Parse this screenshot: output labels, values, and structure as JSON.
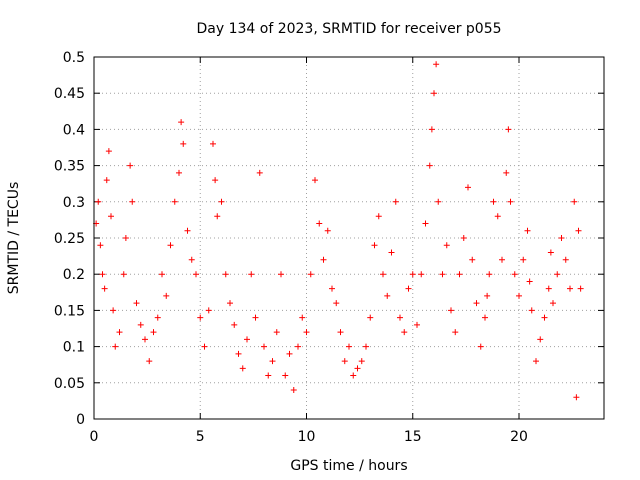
{
  "chart_data": {
    "type": "scatter",
    "title": "Day 134 of 2023, SRMTID for receiver p055",
    "xlabel": "GPS time / hours",
    "ylabel": "SRMTID / TECUs",
    "xlim": [
      0,
      24
    ],
    "ylim": [
      0,
      0.5
    ],
    "x_ticks": [
      0,
      5,
      10,
      15,
      20
    ],
    "x_tick_labels": [
      "0",
      "5",
      "10",
      "15",
      "20"
    ],
    "y_ticks": [
      0,
      0.05,
      0.1,
      0.15,
      0.2,
      0.25,
      0.3,
      0.35,
      0.4,
      0.45,
      0.5
    ],
    "y_tick_labels": [
      "0",
      "0.05",
      "0.1",
      "0.15",
      "0.2",
      "0.25",
      "0.3",
      "0.35",
      "0.4",
      "0.45",
      "0.5"
    ],
    "grid": true,
    "marker": "+",
    "marker_color": "#ff0000",
    "series": [
      {
        "name": "SRMTID",
        "points": [
          [
            0.1,
            0.27
          ],
          [
            0.2,
            0.3
          ],
          [
            0.3,
            0.24
          ],
          [
            0.4,
            0.2
          ],
          [
            0.5,
            0.18
          ],
          [
            0.6,
            0.33
          ],
          [
            0.7,
            0.37
          ],
          [
            0.8,
            0.28
          ],
          [
            0.9,
            0.15
          ],
          [
            1.0,
            0.1
          ],
          [
            1.2,
            0.12
          ],
          [
            1.4,
            0.2
          ],
          [
            1.5,
            0.25
          ],
          [
            1.7,
            0.35
          ],
          [
            1.8,
            0.3
          ],
          [
            2.0,
            0.16
          ],
          [
            2.2,
            0.13
          ],
          [
            2.4,
            0.11
          ],
          [
            2.6,
            0.08
          ],
          [
            2.8,
            0.12
          ],
          [
            3.0,
            0.14
          ],
          [
            3.2,
            0.2
          ],
          [
            3.4,
            0.17
          ],
          [
            3.6,
            0.24
          ],
          [
            3.8,
            0.3
          ],
          [
            4.0,
            0.34
          ],
          [
            4.1,
            0.41
          ],
          [
            4.2,
            0.38
          ],
          [
            4.4,
            0.26
          ],
          [
            4.6,
            0.22
          ],
          [
            4.8,
            0.2
          ],
          [
            5.0,
            0.14
          ],
          [
            5.2,
            0.1
          ],
          [
            5.4,
            0.15
          ],
          [
            5.6,
            0.38
          ],
          [
            5.7,
            0.33
          ],
          [
            5.8,
            0.28
          ],
          [
            6.0,
            0.3
          ],
          [
            6.2,
            0.2
          ],
          [
            6.4,
            0.16
          ],
          [
            6.6,
            0.13
          ],
          [
            6.8,
            0.09
          ],
          [
            7.0,
            0.07
          ],
          [
            7.2,
            0.11
          ],
          [
            7.4,
            0.2
          ],
          [
            7.6,
            0.14
          ],
          [
            7.8,
            0.34
          ],
          [
            8.0,
            0.1
          ],
          [
            8.2,
            0.06
          ],
          [
            8.4,
            0.08
          ],
          [
            8.6,
            0.12
          ],
          [
            8.8,
            0.2
          ],
          [
            9.0,
            0.06
          ],
          [
            9.2,
            0.09
          ],
          [
            9.4,
            0.04
          ],
          [
            9.6,
            0.1
          ],
          [
            9.8,
            0.14
          ],
          [
            10.0,
            0.12
          ],
          [
            10.2,
            0.2
          ],
          [
            10.4,
            0.33
          ],
          [
            10.6,
            0.27
          ],
          [
            10.8,
            0.22
          ],
          [
            11.0,
            0.26
          ],
          [
            11.2,
            0.18
          ],
          [
            11.4,
            0.16
          ],
          [
            11.6,
            0.12
          ],
          [
            11.8,
            0.08
          ],
          [
            12.0,
            0.1
          ],
          [
            12.2,
            0.06
          ],
          [
            12.4,
            0.07
          ],
          [
            12.6,
            0.08
          ],
          [
            12.8,
            0.1
          ],
          [
            13.0,
            0.14
          ],
          [
            13.2,
            0.24
          ],
          [
            13.4,
            0.28
          ],
          [
            13.6,
            0.2
          ],
          [
            13.8,
            0.17
          ],
          [
            14.0,
            0.23
          ],
          [
            14.2,
            0.3
          ],
          [
            14.4,
            0.14
          ],
          [
            14.6,
            0.12
          ],
          [
            14.8,
            0.18
          ],
          [
            15.0,
            0.2
          ],
          [
            15.2,
            0.13
          ],
          [
            15.4,
            0.2
          ],
          [
            15.6,
            0.27
          ],
          [
            15.8,
            0.35
          ],
          [
            15.9,
            0.4
          ],
          [
            16.0,
            0.45
          ],
          [
            16.1,
            0.49
          ],
          [
            16.2,
            0.3
          ],
          [
            16.4,
            0.2
          ],
          [
            16.6,
            0.24
          ],
          [
            16.8,
            0.15
          ],
          [
            17.0,
            0.12
          ],
          [
            17.2,
            0.2
          ],
          [
            17.4,
            0.25
          ],
          [
            17.6,
            0.32
          ],
          [
            17.8,
            0.22
          ],
          [
            18.0,
            0.16
          ],
          [
            18.2,
            0.1
          ],
          [
            18.4,
            0.14
          ],
          [
            18.6,
            0.2
          ],
          [
            18.8,
            0.3
          ],
          [
            19.0,
            0.28
          ],
          [
            19.2,
            0.22
          ],
          [
            19.4,
            0.34
          ],
          [
            19.5,
            0.4
          ],
          [
            19.6,
            0.3
          ],
          [
            19.8,
            0.2
          ],
          [
            20.0,
            0.17
          ],
          [
            20.2,
            0.22
          ],
          [
            20.4,
            0.26
          ],
          [
            20.6,
            0.15
          ],
          [
            20.8,
            0.08
          ],
          [
            21.0,
            0.11
          ],
          [
            21.2,
            0.14
          ],
          [
            21.4,
            0.18
          ],
          [
            21.6,
            0.16
          ],
          [
            21.8,
            0.2
          ],
          [
            22.0,
            0.25
          ],
          [
            22.2,
            0.22
          ],
          [
            22.4,
            0.18
          ],
          [
            22.6,
            0.3
          ],
          [
            22.8,
            0.26
          ],
          [
            22.9,
            0.18
          ],
          [
            22.7,
            0.03
          ],
          [
            21.5,
            0.23
          ],
          [
            20.5,
            0.19
          ],
          [
            18.5,
            0.17
          ]
        ]
      }
    ]
  }
}
